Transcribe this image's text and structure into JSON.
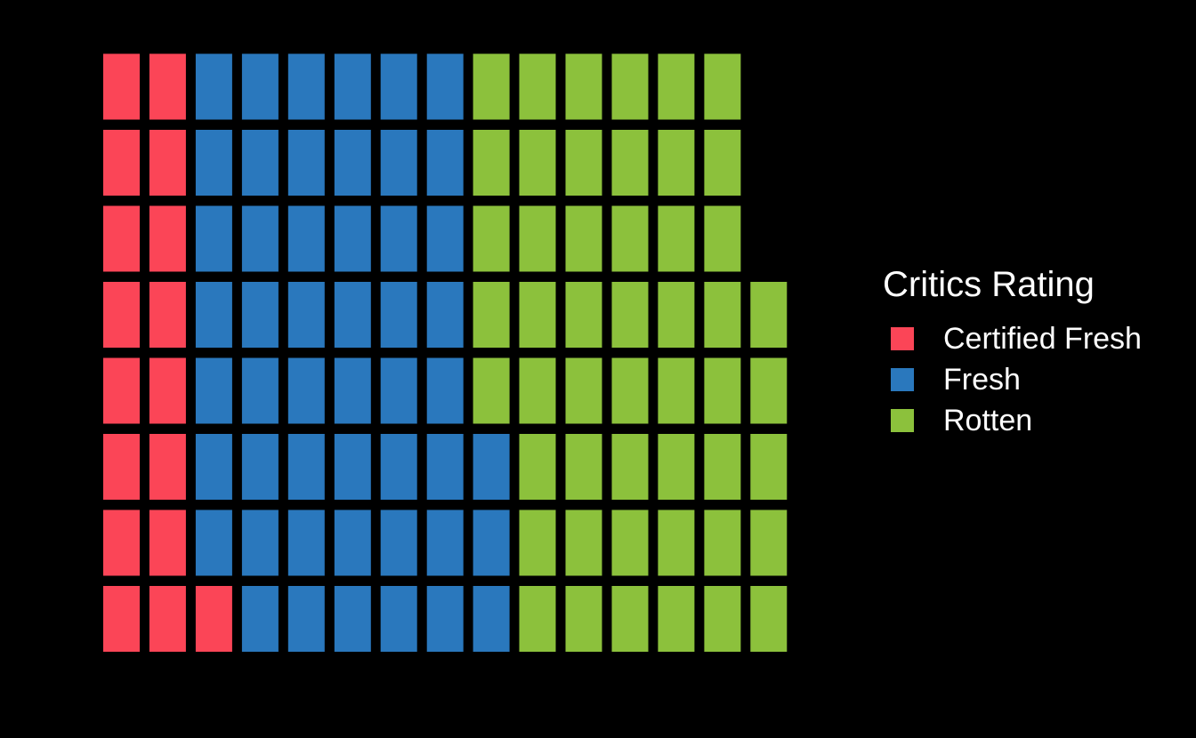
{
  "chart_data": {
    "type": "waffle",
    "fill_order": "column-major, bottom row first",
    "rows": 8,
    "legend_title": "Critics Rating",
    "legend_position": "right",
    "categories": [
      "Certified Fresh",
      "Fresh",
      "Rotten"
    ],
    "counts": [
      17,
      50,
      50
    ],
    "colors": [
      "#fb4557",
      "#2a78bd",
      "#8cc13c"
    ]
  }
}
